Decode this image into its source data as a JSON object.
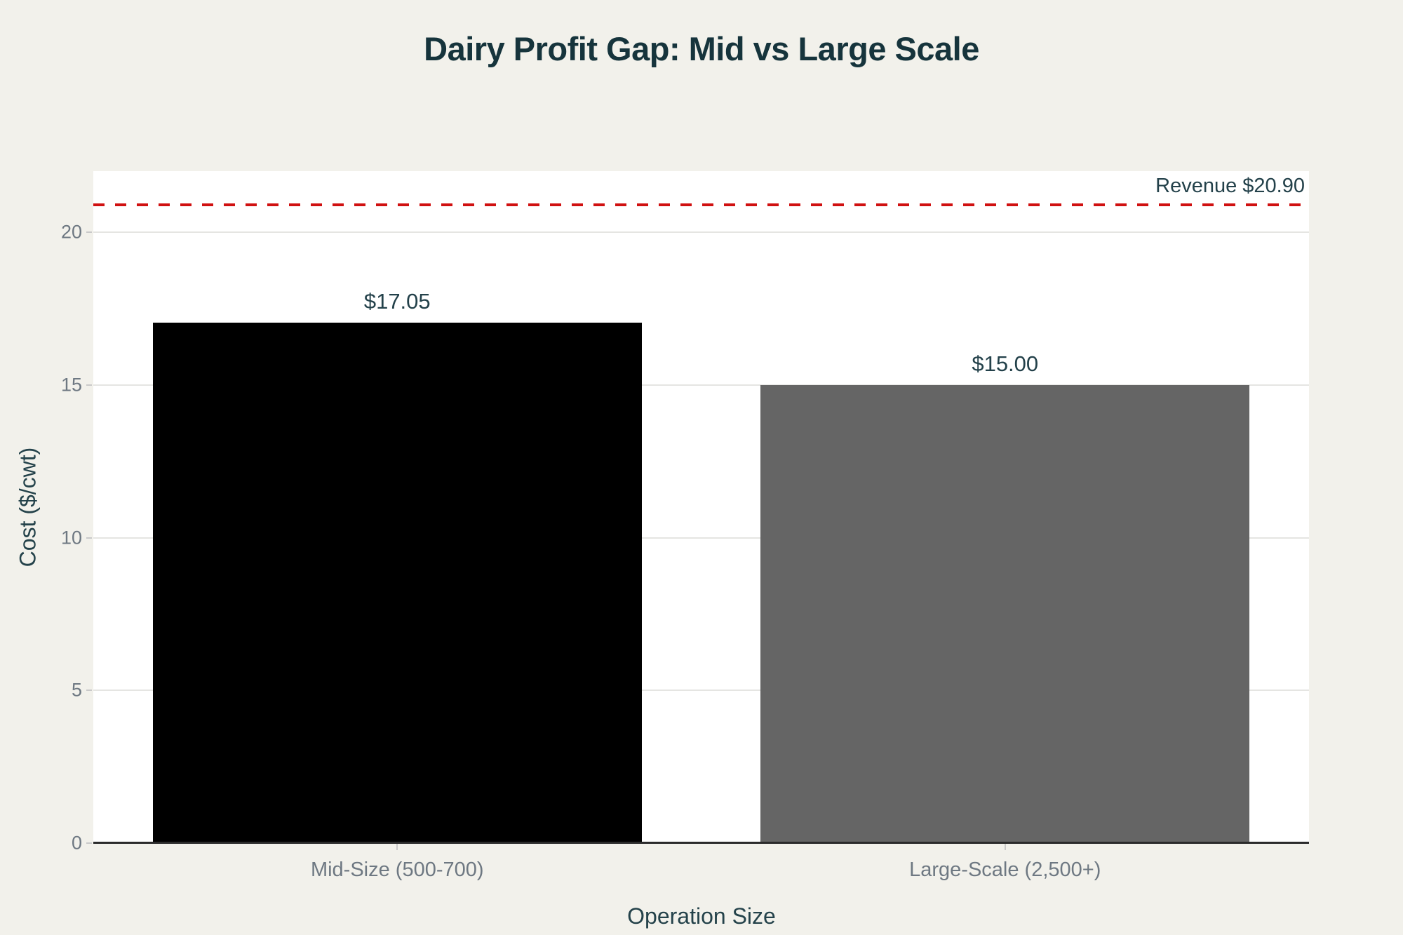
{
  "title": "Dairy Profit Gap: Mid vs Large Scale",
  "colors": {
    "background": "#f2f1eb",
    "plot_background": "#ffffff",
    "title_text": "#16343c",
    "axis_title_text": "#24424a",
    "tick_text": "#6e7882",
    "value_label_text": "#23414a",
    "gridline": "#e5e5e2",
    "axis_line": "#2b2b2b",
    "reference_line": "#d01111"
  },
  "chart_data": {
    "type": "bar",
    "title": "Dairy Profit Gap: Mid vs Large Scale",
    "xlabel": "Operation Size",
    "ylabel": "Cost ($/cwt)",
    "categories": [
      "Mid-Size (500-700)",
      "Large-Scale (2,500+)"
    ],
    "values": [
      17.05,
      15.0
    ],
    "value_labels": [
      "$17.05",
      "$15.00"
    ],
    "bar_colors": [
      "#000000",
      "#656565"
    ],
    "yticks": [
      0,
      5,
      10,
      15,
      20
    ],
    "ylim": [
      0,
      22
    ],
    "grid": true,
    "legend": "none",
    "reference_line": {
      "value": 20.9,
      "label": "Revenue $20.90",
      "style": "dashed",
      "color": "#d01111"
    }
  }
}
